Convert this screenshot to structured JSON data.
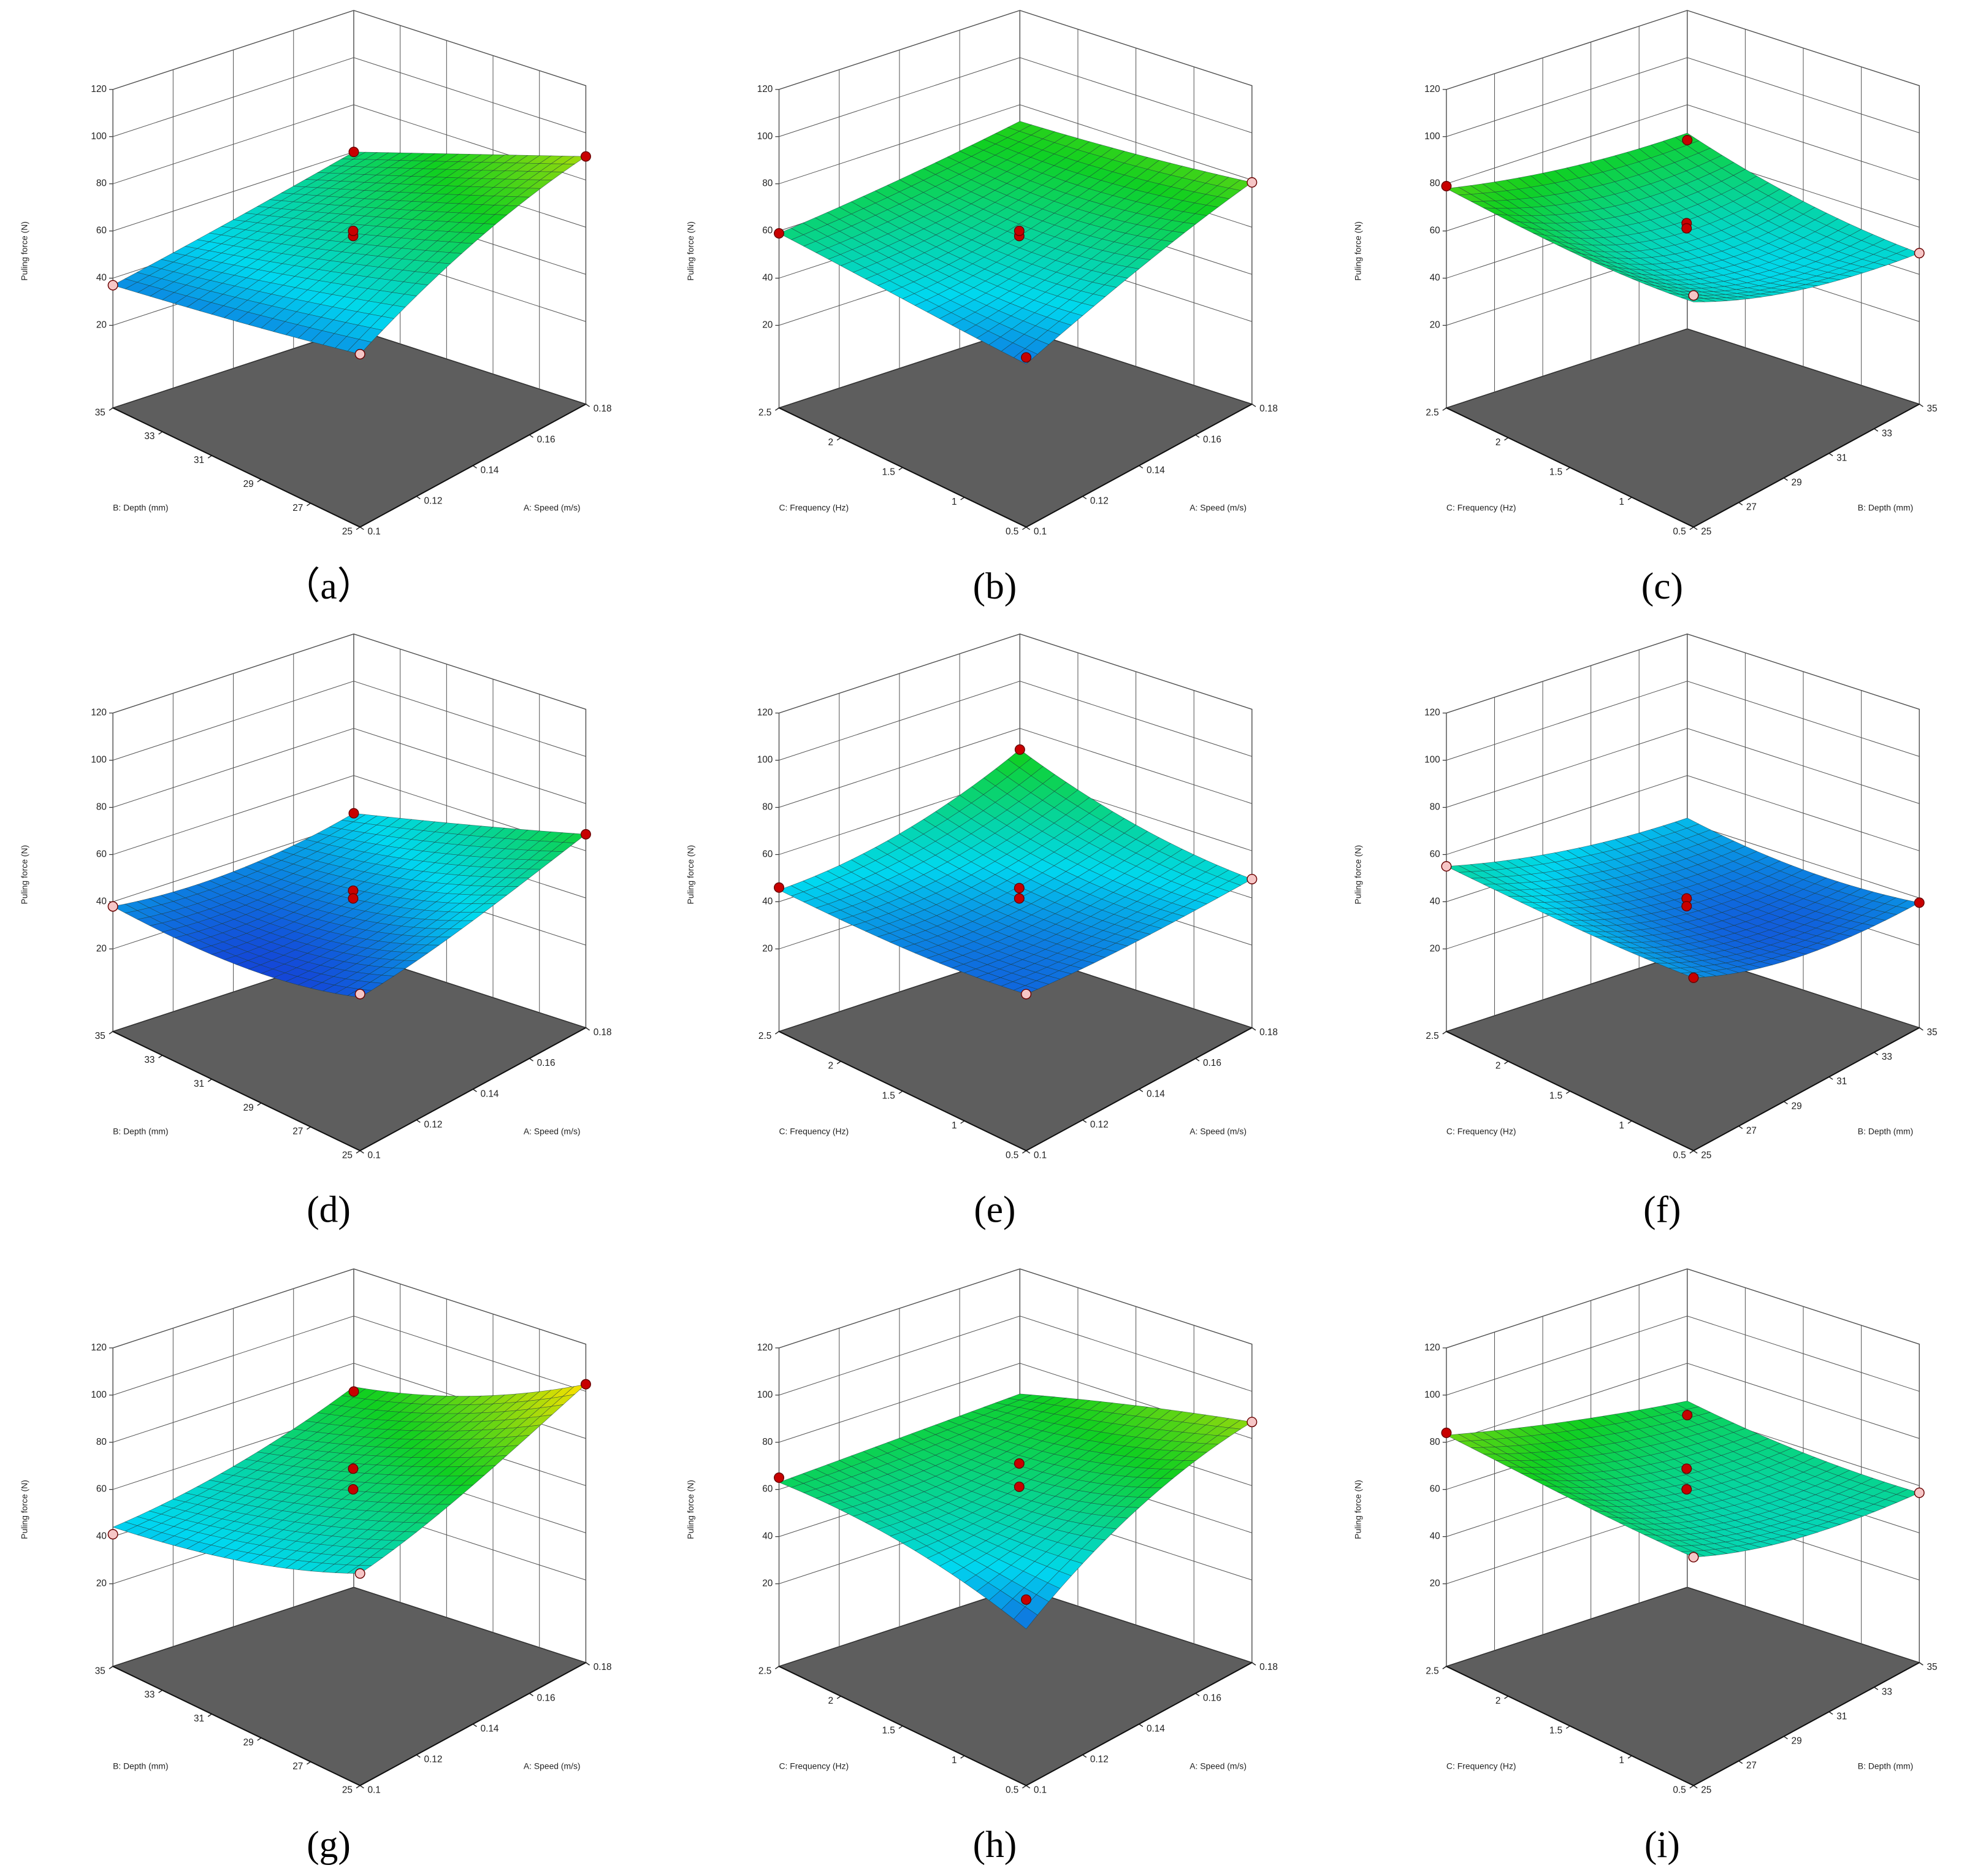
{
  "chart_data": [
    {
      "type": "surface",
      "caption": "（a）",
      "zlabel": "Puling force (N)",
      "xlabel": "A: Speed (m/s)",
      "ylabel": "B: Depth (mm)",
      "xlim": [
        0.1,
        0.18
      ],
      "xticks": [
        0.1,
        0.12,
        0.14,
        0.16,
        0.18
      ],
      "ylim": [
        25,
        35
      ],
      "yticks": [
        25,
        27,
        29,
        31,
        33,
        35
      ],
      "zlim": [
        -15,
        120
      ],
      "zticks": [
        20,
        40,
        60,
        80,
        100,
        120
      ],
      "surface": [
        [
          38,
          64,
          90
        ],
        [
          37,
          56,
          75
        ],
        [
          37,
          48,
          60
        ]
      ],
      "points": {
        "x": [
          0.1,
          0.1,
          0.18,
          0.18,
          0.14,
          0.14
        ],
        "y": [
          35,
          25,
          25,
          35,
          30,
          30
        ],
        "z": [
          37,
          38,
          90,
          60,
          55,
          57
        ],
        "colors": [
          "#f6c6c6",
          "#f6c6c6",
          "#c80000",
          "#c80000",
          "#c80000",
          "#c80000"
        ]
      },
      "colorscale": [
        [
          25,
          "#1a1ad0"
        ],
        [
          45,
          "#00d8f0"
        ],
        [
          70,
          "#10d020"
        ],
        [
          100,
          "#f0e000"
        ],
        [
          120,
          "#f08000"
        ]
      ]
    },
    {
      "type": "surface",
      "caption": "(b)",
      "zlabel": "Puling force (N)",
      "xlabel": "A: Speed (m/s)",
      "ylabel": "C: Frequency (Hz)",
      "xlim": [
        0.1,
        0.18
      ],
      "xticks": [
        0.1,
        0.12,
        0.14,
        0.16,
        0.18
      ],
      "ylim": [
        0.5,
        2.5
      ],
      "yticks": [
        0.5,
        1,
        1.5,
        2,
        2.5
      ],
      "zlim": [
        -15,
        120
      ],
      "zticks": [
        20,
        40,
        60,
        80,
        100,
        120
      ],
      "surface": [
        [
          35,
          55,
          79
        ],
        [
          45,
          55,
          75
        ],
        [
          59,
          65,
          73
        ]
      ],
      "points": {
        "x": [
          0.1,
          0.1,
          0.18,
          0.14,
          0.14
        ],
        "y": [
          2.5,
          0.5,
          0.5,
          1.5,
          1.5
        ],
        "z": [
          59,
          37,
          79,
          55,
          57
        ],
        "colors": [
          "#c80000",
          "#c80000",
          "#f6c6c6",
          "#c80000",
          "#c80000"
        ]
      },
      "colorscale": [
        [
          25,
          "#1a1ad0"
        ],
        [
          45,
          "#00d8f0"
        ],
        [
          70,
          "#10d020"
        ],
        [
          100,
          "#f0e000"
        ],
        [
          120,
          "#f08000"
        ]
      ]
    },
    {
      "type": "surface",
      "caption": "(c)",
      "zlabel": "Puling force (N)",
      "xlabel": "B: Depth (mm)",
      "ylabel": "C: Frequency (Hz)",
      "xlim": [
        25,
        35
      ],
      "xticks": [
        25,
        27,
        29,
        31,
        33,
        35
      ],
      "ylim": [
        0.5,
        2.5
      ],
      "yticks": [
        0.5,
        1,
        1.5,
        2,
        2.5
      ],
      "zlim": [
        -15,
        120
      ],
      "zticks": [
        20,
        40,
        60,
        80,
        100,
        120
      ],
      "surface": [
        [
          54,
          48,
          49
        ],
        [
          62,
          49,
          55
        ],
        [
          78,
          70,
          68
        ]
      ],
      "points": {
        "x": [
          25,
          25,
          35,
          35,
          30,
          30
        ],
        "y": [
          2.5,
          0.5,
          0.5,
          2.5,
          1.5,
          1.5
        ],
        "z": [
          79,
          56,
          49,
          65,
          60,
          58
        ],
        "colors": [
          "#c80000",
          "#f6c6c6",
          "#f6c6c6",
          "#c80000",
          "#c80000",
          "#c80000"
        ]
      },
      "colorscale": [
        [
          25,
          "#1a1ad0"
        ],
        [
          45,
          "#00d8f0"
        ],
        [
          70,
          "#10d020"
        ],
        [
          100,
          "#f0e000"
        ],
        [
          120,
          "#f08000"
        ]
      ]
    },
    {
      "type": "surface",
      "caption": "(d)",
      "zlabel": "Puling force (N)",
      "xlabel": "A: Speed (m/s)",
      "ylabel": "B: Depth (mm)",
      "xlim": [
        0.1,
        0.18
      ],
      "xticks": [
        0.1,
        0.12,
        0.14,
        0.16,
        0.18
      ],
      "ylim": [
        25,
        35
      ],
      "yticks": [
        25,
        27,
        29,
        31,
        33,
        35
      ],
      "zlim": [
        -15,
        120
      ],
      "zticks": [
        20,
        40,
        60,
        80,
        100,
        120
      ],
      "surface": [
        [
          32,
          45,
          67
        ],
        [
          30,
          36,
          55
        ],
        [
          38,
          36,
          44
        ]
      ],
      "points": {
        "x": [
          0.1,
          0.1,
          0.18,
          0.18,
          0.14,
          0.14
        ],
        "y": [
          35,
          25,
          25,
          35,
          30,
          30
        ],
        "z": [
          38,
          33,
          67,
          44,
          43,
          40
        ],
        "colors": [
          "#f6c6c6",
          "#f6c6c6",
          "#c80000",
          "#c80000",
          "#c80000",
          "#c80000"
        ]
      },
      "colorscale": [
        [
          25,
          "#1a1ad0"
        ],
        [
          45,
          "#00d8f0"
        ],
        [
          70,
          "#10d020"
        ],
        [
          100,
          "#f0e000"
        ],
        [
          120,
          "#f08000"
        ]
      ]
    },
    {
      "type": "surface",
      "caption": "(e)",
      "zlabel": "Puling force (N)",
      "xlabel": "A: Speed (m/s)",
      "ylabel": "C: Frequency (Hz)",
      "xlim": [
        0.1,
        0.18
      ],
      "xticks": [
        0.1,
        0.12,
        0.14,
        0.16,
        0.18
      ],
      "ylim": [
        0.5,
        2.5
      ],
      "yticks": [
        0.5,
        1,
        1.5,
        2,
        2.5
      ],
      "zlim": [
        -15,
        120
      ],
      "zticks": [
        20,
        40,
        60,
        80,
        100,
        120
      ],
      "surface": [
        [
          33,
          38,
          48
        ],
        [
          36,
          40,
          55
        ],
        [
          45,
          52,
          71
        ]
      ],
      "points": {
        "x": [
          0.1,
          0.1,
          0.18,
          0.18,
          0.14,
          0.14
        ],
        "y": [
          2.5,
          0.5,
          0.5,
          2.5,
          1.5,
          1.5
        ],
        "z": [
          46,
          33,
          48,
          71,
          44,
          40
        ],
        "colors": [
          "#c80000",
          "#f6c6c6",
          "#f6c6c6",
          "#c80000",
          "#c80000",
          "#c80000"
        ]
      },
      "colorscale": [
        [
          25,
          "#1a1ad0"
        ],
        [
          45,
          "#00d8f0"
        ],
        [
          70,
          "#10d020"
        ],
        [
          100,
          "#f0e000"
        ],
        [
          120,
          "#f08000"
        ]
      ]
    },
    {
      "type": "surface",
      "caption": "(f)",
      "zlabel": "Puling force (N)",
      "xlabel": "B: Depth (mm)",
      "ylabel": "C: Frequency (Hz)",
      "xlim": [
        25,
        35
      ],
      "xticks": [
        25,
        27,
        29,
        31,
        33,
        35
      ],
      "ylim": [
        0.5,
        2.5
      ],
      "yticks": [
        0.5,
        1,
        1.5,
        2,
        2.5
      ],
      "zlim": [
        -15,
        120
      ],
      "zticks": [
        20,
        40,
        60,
        80,
        100,
        120
      ],
      "surface": [
        [
          38,
          33,
          38
        ],
        [
          44,
          34,
          36
        ],
        [
          55,
          45,
          42
        ]
      ],
      "points": {
        "x": [
          25,
          25,
          35,
          30,
          30
        ],
        "y": [
          2.5,
          0.5,
          0.5,
          1.5,
          1.5
        ],
        "z": [
          55,
          38,
          38,
          40,
          37
        ],
        "colors": [
          "#f6c6c6",
          "#c80000",
          "#c80000",
          "#c80000",
          "#c80000"
        ]
      },
      "colorscale": [
        [
          25,
          "#1a1ad0"
        ],
        [
          45,
          "#00d8f0"
        ],
        [
          70,
          "#10d020"
        ],
        [
          100,
          "#f0e000"
        ],
        [
          120,
          "#f08000"
        ]
      ]
    },
    {
      "type": "surface",
      "caption": "(g)",
      "zlabel": "Puling force (N)",
      "xlabel": "A: Speed (m/s)",
      "ylabel": "B: Depth (mm)",
      "xlim": [
        0.1,
        0.18
      ],
      "xticks": [
        0.1,
        0.12,
        0.14,
        0.16,
        0.18
      ],
      "ylim": [
        25,
        35
      ],
      "yticks": [
        25,
        27,
        29,
        31,
        33,
        35
      ],
      "zlim": [
        -15,
        120
      ],
      "zticks": [
        20,
        40,
        60,
        80,
        100,
        120
      ],
      "surface": [
        [
          50,
          70,
          103
        ],
        [
          44,
          60,
          82
        ],
        [
          44,
          53,
          70
        ]
      ],
      "points": {
        "x": [
          0.1,
          0.1,
          0.18,
          0.18,
          0.14,
          0.14
        ],
        "y": [
          35,
          25,
          25,
          35,
          30,
          30
        ],
        "z": [
          41,
          50,
          103,
          68,
          65,
          57
        ],
        "colors": [
          "#f6c6c6",
          "#f6c6c6",
          "#c80000",
          "#c80000",
          "#c80000",
          "#c80000"
        ]
      },
      "colorscale": [
        [
          25,
          "#1a1ad0"
        ],
        [
          45,
          "#00d8f0"
        ],
        [
          70,
          "#10d020"
        ],
        [
          100,
          "#f0e000"
        ],
        [
          120,
          "#f08000"
        ]
      ]
    },
    {
      "type": "surface",
      "caption": "(h)",
      "zlabel": "Puling force (N)",
      "xlabel": "A: Speed (m/s)",
      "ylabel": "C: Frequency (Hz)",
      "xlim": [
        0.1,
        0.18
      ],
      "xticks": [
        0.1,
        0.12,
        0.14,
        0.16,
        0.18
      ],
      "ylim": [
        0.5,
        2.5
      ],
      "yticks": [
        0.5,
        1,
        1.5,
        2,
        2.5
      ],
      "zlim": [
        -15,
        120
      ],
      "zticks": [
        20,
        40,
        60,
        80,
        100,
        120
      ],
      "surface": [
        [
          33,
          62,
          87
        ],
        [
          50,
          58,
          78
        ],
        [
          63,
          65,
          67
        ]
      ],
      "points": {
        "x": [
          0.1,
          0.1,
          0.18,
          0.14,
          0.14
        ],
        "y": [
          2.5,
          0.5,
          0.5,
          1.5,
          1.5
        ],
        "z": [
          65,
          42,
          87,
          67,
          58
        ],
        "colors": [
          "#c80000",
          "#c80000",
          "#f6c6c6",
          "#c80000",
          "#c80000"
        ]
      },
      "colorscale": [
        [
          25,
          "#1a1ad0"
        ],
        [
          45,
          "#00d8f0"
        ],
        [
          70,
          "#10d020"
        ],
        [
          100,
          "#f0e000"
        ],
        [
          120,
          "#f08000"
        ]
      ]
    },
    {
      "type": "surface",
      "caption": "(i)",
      "zlabel": "Puling force (N)",
      "xlabel": "B: Depth (mm)",
      "ylabel": "C: Frequency (Hz)",
      "xlim": [
        25,
        35
      ],
      "xticks": [
        25,
        27,
        29,
        31,
        33,
        35
      ],
      "ylim": [
        0.5,
        2.5
      ],
      "yticks": [
        0.5,
        1,
        1.5,
        2,
        2.5
      ],
      "zlim": [
        -15,
        120
      ],
      "zticks": [
        20,
        40,
        60,
        80,
        100,
        120
      ],
      "surface": [
        [
          55,
          52,
          57
        ],
        [
          66,
          56,
          58
        ],
        [
          83,
          72,
          64
        ]
      ],
      "points": {
        "x": [
          25,
          25,
          35,
          35,
          30,
          30
        ],
        "y": [
          2.5,
          0.5,
          0.5,
          2.5,
          1.5,
          1.5
        ],
        "z": [
          84,
          55,
          57,
          58,
          65,
          57
        ],
        "colors": [
          "#c80000",
          "#f6c6c6",
          "#f6c6c6",
          "#c80000",
          "#c80000",
          "#c80000"
        ]
      },
      "colorscale": [
        [
          25,
          "#1a1ad0"
        ],
        [
          45,
          "#00d8f0"
        ],
        [
          70,
          "#10d020"
        ],
        [
          100,
          "#f0e000"
        ],
        [
          120,
          "#f08000"
        ]
      ]
    }
  ]
}
